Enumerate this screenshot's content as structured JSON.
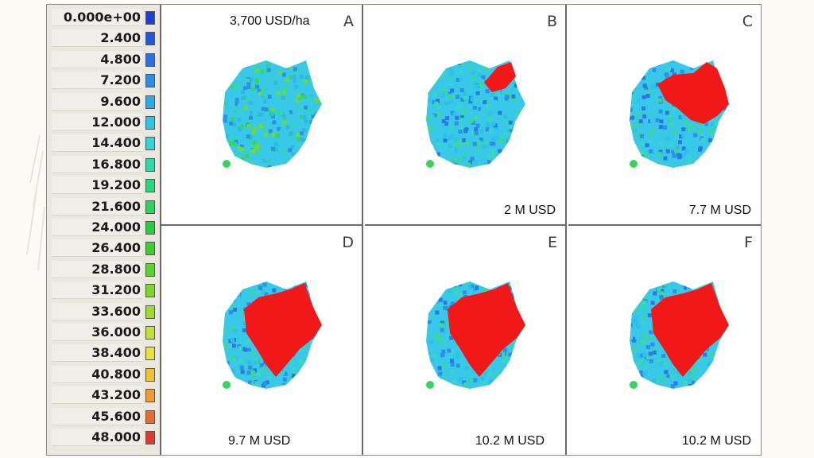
{
  "legend": {
    "values": [
      "0.000e+00",
      "2.400",
      "4.800",
      "7.200",
      "9.600",
      "12.000",
      "14.400",
      "16.800",
      "19.200",
      "21.600",
      "24.000",
      "26.400",
      "28.800",
      "31.200",
      "33.600",
      "36.000",
      "38.400",
      "40.800",
      "43.200",
      "45.600",
      "48.000"
    ],
    "colors": [
      "#1a3fd6",
      "#1f56e0",
      "#2670e8",
      "#2c8ce8",
      "#2ea8e6",
      "#30c3e4",
      "#2fd6d6",
      "#2dd9a8",
      "#2bd77e",
      "#2ad55c",
      "#26d03c",
      "#3dcf2e",
      "#5ad22e",
      "#7bd52f",
      "#9edb30",
      "#c3e034",
      "#e8e23a",
      "#f0c23a",
      "#ef9a34",
      "#ea6a2e",
      "#e03a2a"
    ]
  },
  "panels": [
    {
      "letter": "A",
      "caption": "3,700 USD/ha",
      "red": 0
    },
    {
      "letter": "B",
      "caption": "2 M USD",
      "red": 1
    },
    {
      "letter": "C",
      "caption": "7.7 M USD",
      "red": 2
    },
    {
      "letter": "D",
      "caption": "9.7 M USD",
      "red": 3
    },
    {
      "letter": "E",
      "caption": "10.2 M USD",
      "red": 3
    },
    {
      "letter": "F",
      "caption": "10.2 M USD",
      "red": 3
    }
  ]
}
